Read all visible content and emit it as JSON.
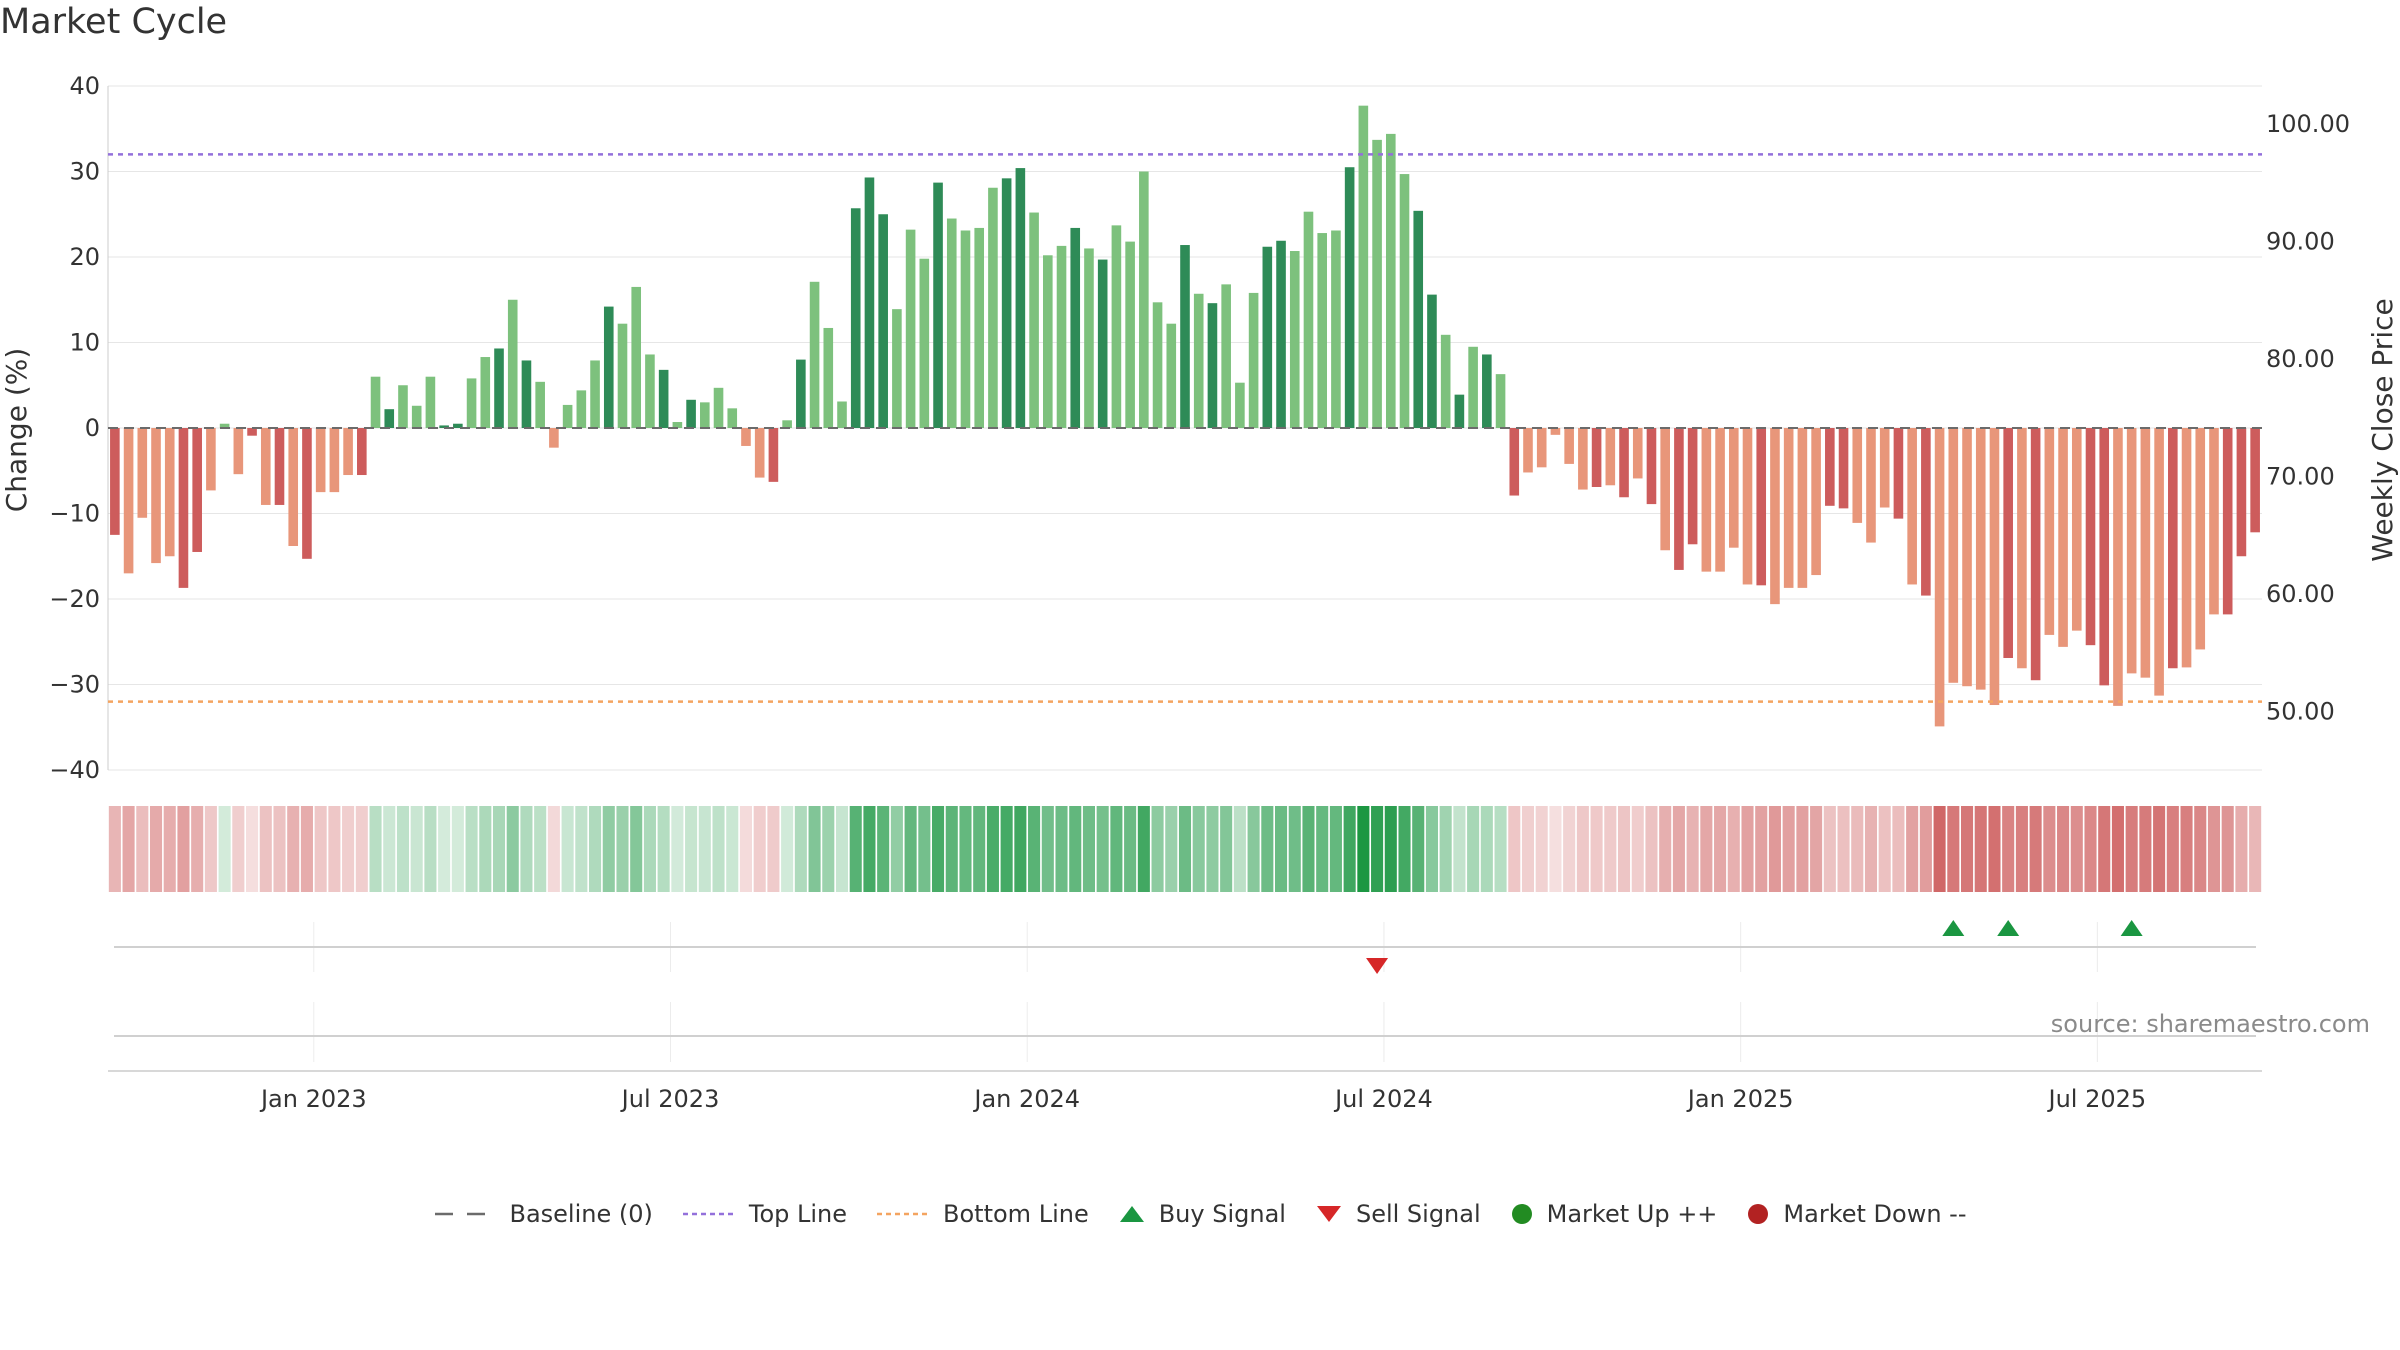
{
  "title": "Market Cycle",
  "source": "source: sharemaestro.com",
  "colors": {
    "pos_dark": "#2e8b57",
    "pos_light": "#7dc17d",
    "neg_dark": "#cd5c5c",
    "neg_light": "#e8967a",
    "top_line": "#9370db",
    "bottom_line": "#f4a460",
    "baseline": "#6b6b6b",
    "buy": "#1a9641",
    "sell": "#d62728",
    "market_up": "#228b22",
    "market_down": "#b22222"
  },
  "chart_data": {
    "type": "bar",
    "x_axis": {
      "ticks": [
        "Jan 2023",
        "Jul 2023",
        "Jan 2024",
        "Jul 2024",
        "Jan 2025",
        "Jul 2025"
      ],
      "tick_weeks": [
        15,
        41,
        67,
        93,
        119,
        145
      ]
    },
    "y_left": {
      "label": "Change (%)",
      "range": [
        -40,
        40
      ],
      "ticks": [
        "40",
        "30",
        "20",
        "10",
        "0",
        "−10",
        "−20",
        "−30",
        "−40"
      ]
    },
    "y_right": {
      "label": "Weekly Close Price",
      "ticks": [
        "100.00",
        "90.00",
        "80.00",
        "70.00",
        "60.00",
        "50.00"
      ]
    },
    "top_line": 32,
    "bottom_line": -32,
    "weeks": 157,
    "values": [
      -12.5,
      -17,
      -10.5,
      -15.8,
      -15,
      -18.7,
      -14.5,
      -7.3,
      0.5,
      -5.4,
      -0.9,
      -9,
      -9,
      -13.8,
      -15.3,
      -7.5,
      -7.5,
      -5.5,
      -5.5,
      6,
      2.2,
      5,
      2.6,
      6,
      0.3,
      0.5,
      5.8,
      8.3,
      9.3,
      15,
      7.9,
      5.4,
      -2.3,
      2.7,
      4.4,
      7.9,
      14.2,
      12.2,
      16.5,
      8.6,
      6.8,
      0.7,
      3.3,
      3,
      4.7,
      2.3,
      -2.1,
      -5.8,
      -6.3,
      0.9,
      8,
      17.1,
      11.7,
      3.1,
      25.7,
      29.3,
      25,
      13.9,
      23.2,
      19.8,
      28.7,
      24.5,
      23.1,
      23.4,
      28.1,
      29.2,
      30.4,
      25.2,
      20.2,
      21.3,
      23.4,
      21,
      19.7,
      23.7,
      21.8,
      30,
      14.7,
      12.2,
      21.4,
      15.7,
      14.6,
      16.8,
      5.3,
      15.8,
      21.2,
      21.9,
      20.7,
      25.3,
      22.8,
      23.1,
      30.5,
      37.7,
      33.7,
      34.4,
      29.7,
      25.4,
      15.6,
      10.9,
      3.9,
      9.5,
      8.6,
      6.3,
      -7.9,
      -5.2,
      -4.6,
      -0.8,
      -4.2,
      -7.2,
      -6.9,
      -6.7,
      -8.1,
      -5.9,
      -8.9,
      -14.3,
      -16.6,
      -13.6,
      -16.8,
      -16.8,
      -14,
      -18.3,
      -18.4,
      -20.6,
      -18.7,
      -18.7,
      -17.2,
      -9.1,
      -9.4,
      -11.1,
      -13.4,
      -9.3,
      -10.6,
      -18.3,
      -19.6,
      -34.9,
      -29.8,
      -30.2,
      -30.6,
      -32.4,
      -26.9,
      -28.1,
      -29.5,
      -24.2,
      -25.6,
      -23.7,
      -25.4,
      -30.1,
      -32.5,
      -28.7,
      -29.2,
      -31.3,
      -28.1,
      -28,
      -25.9,
      -21.8,
      -21.8,
      -15,
      -12.2
    ],
    "signals": {
      "buy_weeks": [
        134,
        138,
        147
      ],
      "sell_weeks": [
        92
      ]
    }
  },
  "legend": [
    {
      "key": "baseline",
      "label": "Baseline (0)"
    },
    {
      "key": "top",
      "label": "Top Line"
    },
    {
      "key": "bottom",
      "label": "Bottom Line"
    },
    {
      "key": "buy",
      "label": "Buy Signal"
    },
    {
      "key": "sell",
      "label": "Sell Signal"
    },
    {
      "key": "up",
      "label": "Market Up ++"
    },
    {
      "key": "down",
      "label": "Market Down --"
    }
  ]
}
